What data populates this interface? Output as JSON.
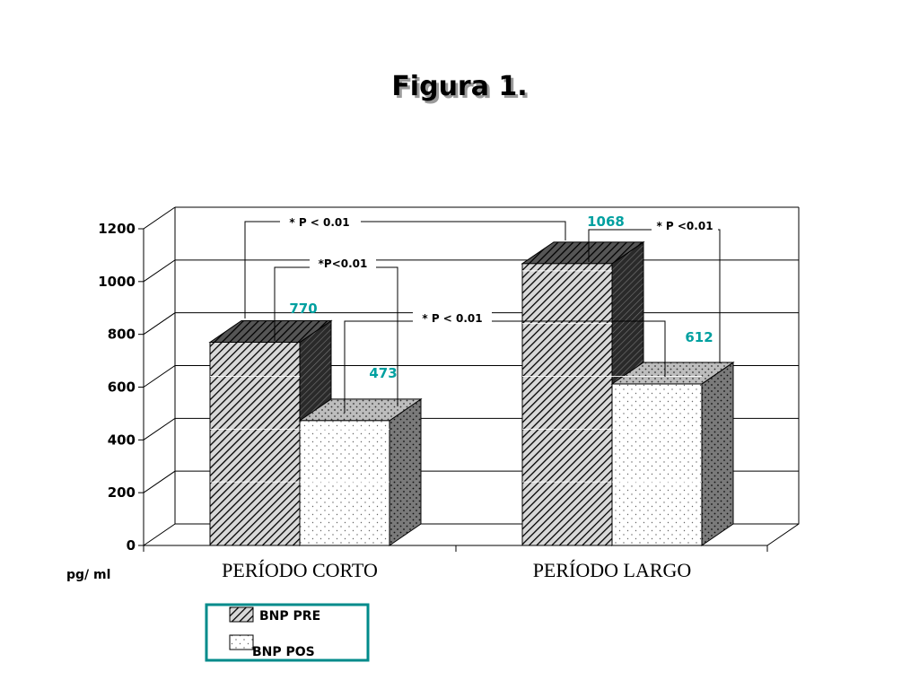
{
  "chart_data": {
    "type": "bar",
    "title": "Figura 1.",
    "ylabel": "pg/ ml",
    "ylim": [
      0,
      1200
    ],
    "yticks": [
      0,
      200,
      400,
      600,
      800,
      1000,
      1200
    ],
    "categories": [
      "PERÍODO CORTO",
      "PERÍODO LARGO"
    ],
    "series": [
      {
        "name": "BNP PRE",
        "values": [
          770,
          1068
        ],
        "labels": [
          "770",
          "1068"
        ],
        "pattern": "hatch"
      },
      {
        "name": "BNP POS",
        "values": [
          473,
          612
        ],
        "labels": [
          "473",
          "612"
        ],
        "pattern": "dots"
      }
    ],
    "annotations": [
      {
        "text": "* P < 0.01",
        "between": "BNP PRE PERÍODO CORTO – BNP PRE PERÍODO LARGO"
      },
      {
        "text": "*P<0.01",
        "between": "BNP PRE PERÍODO CORTO – BNP POS PERÍODO CORTO"
      },
      {
        "text": "* P < 0.01",
        "between": "BNP POS PERÍODO CORTO – BNP POS PERÍODO LARGO"
      },
      {
        "text": "* P <0.01",
        "between": "BNP PRE PERÍODO LARGO – BNP POS PERÍODO LARGO"
      }
    ],
    "legend": "bottom-left",
    "grid": true,
    "style": "3d",
    "colors": {
      "label": "#00a0a0",
      "legend_border": "#008b8b"
    }
  }
}
